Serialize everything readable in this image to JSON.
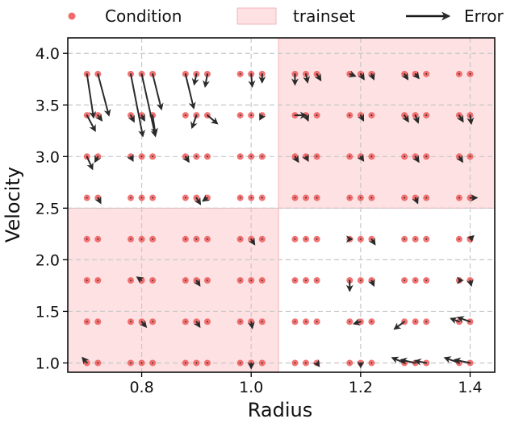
{
  "chart_data": {
    "type": "scatter",
    "xlabel": "Radius",
    "ylabel": "Velocity",
    "xlim": [
      0.665,
      1.445
    ],
    "ylim": [
      0.91,
      4.15
    ],
    "xticks": [
      0.8,
      1.0,
      1.2,
      1.4
    ],
    "xtick_labels": [
      "0.8",
      "1.0",
      "1.2",
      "1.4"
    ],
    "yticks": [
      1.0,
      1.5,
      2.0,
      2.5,
      3.0,
      3.5,
      4.0
    ],
    "ytick_labels": [
      "1.0",
      "1.5",
      "2.0",
      "2.5",
      "3.0",
      "3.5",
      "4.0"
    ],
    "grid": true,
    "legend": {
      "placement": "top",
      "entries": [
        {
          "label": "Condition",
          "kind": "marker"
        },
        {
          "label": "trainset",
          "kind": "patch"
        },
        {
          "label": "Error",
          "kind": "arrow"
        }
      ]
    },
    "colors": {
      "condition": "#ef5b5b",
      "trainset": "#fde1e3",
      "trainset_edge": "#f4b4b9",
      "error": "#2a2a2a"
    },
    "trainset_regions": [
      {
        "x": [
          0.665,
          1.05
        ],
        "y": [
          0.91,
          2.5
        ]
      },
      {
        "x": [
          1.05,
          1.445
        ],
        "y": [
          2.5,
          4.15
        ]
      }
    ],
    "radius_values": [
      0.7,
      0.72,
      0.78,
      0.8,
      0.82,
      0.88,
      0.9,
      0.92,
      0.98,
      1.0,
      1.02,
      1.08,
      1.1,
      1.12,
      1.18,
      1.2,
      1.22,
      1.28,
      1.3,
      1.32,
      1.38,
      1.4
    ],
    "velocity_values": [
      1.0,
      1.4,
      1.8,
      2.2,
      2.6,
      3.0,
      3.4,
      3.8
    ],
    "errors": [
      {
        "x": 0.7,
        "y": 3.8,
        "dx": 0.012,
        "dy": -0.42
      },
      {
        "x": 0.72,
        "y": 3.8,
        "dx": 0.02,
        "dy": -0.4
      },
      {
        "x": 0.7,
        "y": 3.4,
        "dx": 0.015,
        "dy": -0.15
      },
      {
        "x": 0.72,
        "y": 3.4,
        "dx": 0.007,
        "dy": -0.05
      },
      {
        "x": 0.7,
        "y": 3.0,
        "dx": 0.01,
        "dy": -0.12
      },
      {
        "x": 0.72,
        "y": 3.0,
        "dx": -0.005,
        "dy": -0.05
      },
      {
        "x": 0.72,
        "y": 2.6,
        "dx": 0.005,
        "dy": -0.05
      },
      {
        "x": 0.78,
        "y": 3.8,
        "dx": 0.022,
        "dy": -0.6
      },
      {
        "x": 0.8,
        "y": 3.8,
        "dx": 0.025,
        "dy": -0.6
      },
      {
        "x": 0.82,
        "y": 3.8,
        "dx": 0.016,
        "dy": -0.34
      },
      {
        "x": 0.8,
        "y": 3.4,
        "dx": 0.005,
        "dy": -0.05
      },
      {
        "x": 0.82,
        "y": 3.4,
        "dx": 0.005,
        "dy": -0.18
      },
      {
        "x": 0.78,
        "y": 3.4,
        "dx": 0.006,
        "dy": -0.06
      },
      {
        "x": 0.78,
        "y": 3.0,
        "dx": 0.004,
        "dy": -0.04
      },
      {
        "x": 0.88,
        "y": 3.8,
        "dx": 0.015,
        "dy": -0.33
      },
      {
        "x": 0.9,
        "y": 3.8,
        "dx": -0.004,
        "dy": -0.1
      },
      {
        "x": 0.92,
        "y": 3.8,
        "dx": -0.004,
        "dy": -0.12
      },
      {
        "x": 0.9,
        "y": 3.4,
        "dx": -0.008,
        "dy": -0.12
      },
      {
        "x": 0.92,
        "y": 3.4,
        "dx": 0.018,
        "dy": -0.08
      },
      {
        "x": 0.88,
        "y": 3.0,
        "dx": 0.006,
        "dy": -0.05
      },
      {
        "x": 0.9,
        "y": 2.6,
        "dx": 0.007,
        "dy": -0.06
      },
      {
        "x": 0.92,
        "y": 2.6,
        "dx": -0.008,
        "dy": -0.03
      },
      {
        "x": 1.0,
        "y": 3.8,
        "dx": 0.002,
        "dy": -0.12
      },
      {
        "x": 1.02,
        "y": 3.8,
        "dx": 0.0,
        "dy": -0.08
      },
      {
        "x": 1.02,
        "y": 3.4,
        "dx": -0.004,
        "dy": -0.04
      },
      {
        "x": 1.0,
        "y": 2.2,
        "dx": 0.006,
        "dy": -0.05
      },
      {
        "x": 0.9,
        "y": 1.8,
        "dx": 0.006,
        "dy": -0.05
      },
      {
        "x": 0.8,
        "y": 1.4,
        "dx": 0.008,
        "dy": -0.05
      },
      {
        "x": 0.9,
        "y": 1.4,
        "dx": 0.006,
        "dy": -0.05
      },
      {
        "x": 1.0,
        "y": 1.4,
        "dx": 0.002,
        "dy": -0.06
      },
      {
        "x": 1.0,
        "y": 1.0,
        "dx": 0.0,
        "dy": -0.05
      },
      {
        "x": 0.7,
        "y": 1.0,
        "dx": -0.008,
        "dy": 0.05
      },
      {
        "x": 0.8,
        "y": 1.8,
        "dx": -0.008,
        "dy": 0.03
      },
      {
        "x": 1.08,
        "y": 3.8,
        "dx": 0.0,
        "dy": -0.1
      },
      {
        "x": 1.1,
        "y": 3.8,
        "dx": 0.003,
        "dy": -0.08
      },
      {
        "x": 1.12,
        "y": 3.8,
        "dx": 0.007,
        "dy": -0.06
      },
      {
        "x": 1.18,
        "y": 3.8,
        "dx": 0.01,
        "dy": -0.02
      },
      {
        "x": 1.2,
        "y": 3.8,
        "dx": 0.006,
        "dy": -0.05
      },
      {
        "x": 1.22,
        "y": 3.8,
        "dx": 0.004,
        "dy": -0.05
      },
      {
        "x": 1.28,
        "y": 3.8,
        "dx": 0.006,
        "dy": -0.05
      },
      {
        "x": 1.3,
        "y": 3.8,
        "dx": 0.006,
        "dy": -0.04
      },
      {
        "x": 1.08,
        "y": 3.4,
        "dx": 0.02,
        "dy": 0.0
      },
      {
        "x": 1.1,
        "y": 3.4,
        "dx": 0.004,
        "dy": -0.05
      },
      {
        "x": 1.2,
        "y": 3.4,
        "dx": 0.005,
        "dy": -0.05
      },
      {
        "x": 1.28,
        "y": 3.4,
        "dx": 0.007,
        "dy": -0.06
      },
      {
        "x": 1.3,
        "y": 3.4,
        "dx": 0.005,
        "dy": -0.07
      },
      {
        "x": 1.38,
        "y": 3.4,
        "dx": 0.007,
        "dy": -0.06
      },
      {
        "x": 1.4,
        "y": 3.4,
        "dx": 0.002,
        "dy": -0.08
      },
      {
        "x": 1.08,
        "y": 3.0,
        "dx": 0.006,
        "dy": -0.05
      },
      {
        "x": 1.1,
        "y": 3.0,
        "dx": 0.004,
        "dy": -0.04
      },
      {
        "x": 1.2,
        "y": 3.0,
        "dx": 0.005,
        "dy": -0.04
      },
      {
        "x": 1.3,
        "y": 3.0,
        "dx": 0.006,
        "dy": -0.05
      },
      {
        "x": 1.38,
        "y": 3.0,
        "dx": 0.006,
        "dy": -0.05
      },
      {
        "x": 1.3,
        "y": 2.6,
        "dx": 0.004,
        "dy": -0.05
      },
      {
        "x": 1.4,
        "y": 2.6,
        "dx": 0.012,
        "dy": 0.0
      },
      {
        "x": 1.22,
        "y": 2.2,
        "dx": 0.006,
        "dy": -0.05
      },
      {
        "x": 1.18,
        "y": 2.2,
        "dx": 0.004,
        "dy": 0.0
      },
      {
        "x": 1.4,
        "y": 2.2,
        "dx": 0.006,
        "dy": 0.03
      },
      {
        "x": 1.18,
        "y": 1.8,
        "dx": 0.0,
        "dy": -0.1
      },
      {
        "x": 1.22,
        "y": 1.8,
        "dx": 0.004,
        "dy": -0.05
      },
      {
        "x": 1.38,
        "y": 1.8,
        "dx": 0.006,
        "dy": 0.0
      },
      {
        "x": 1.4,
        "y": 1.8,
        "dx": 0.002,
        "dy": -0.05
      },
      {
        "x": 1.2,
        "y": 1.4,
        "dx": -0.012,
        "dy": -0.02
      },
      {
        "x": 1.28,
        "y": 1.4,
        "dx": -0.018,
        "dy": -0.07
      },
      {
        "x": 1.38,
        "y": 1.4,
        "dx": -0.015,
        "dy": 0.03
      },
      {
        "x": 1.4,
        "y": 1.4,
        "dx": -0.022,
        "dy": 0.04
      },
      {
        "x": 1.2,
        "y": 1.0,
        "dx": 0.0,
        "dy": -0.04
      },
      {
        "x": 1.28,
        "y": 1.0,
        "dx": -0.022,
        "dy": 0.05
      },
      {
        "x": 1.3,
        "y": 1.0,
        "dx": -0.026,
        "dy": 0.03
      },
      {
        "x": 1.32,
        "y": 1.0,
        "dx": -0.02,
        "dy": 0.02
      },
      {
        "x": 1.38,
        "y": 1.0,
        "dx": -0.026,
        "dy": 0.05
      },
      {
        "x": 1.4,
        "y": 1.0,
        "dx": -0.028,
        "dy": 0.03
      },
      {
        "x": 1.12,
        "y": 1.0,
        "dx": 0.004,
        "dy": -0.03
      }
    ]
  }
}
